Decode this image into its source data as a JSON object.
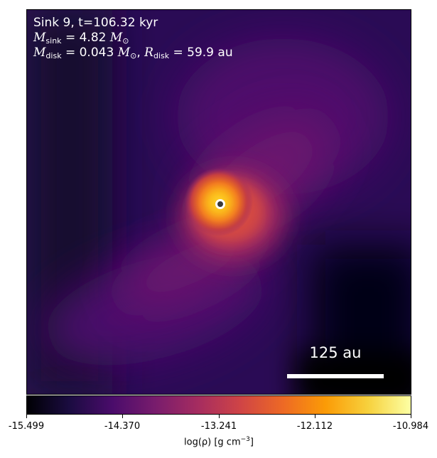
{
  "annotation": {
    "line1": "Sink 9, t=106.32 kyr",
    "m_sink_symbol": "M",
    "m_sink_sub": "sink",
    "m_sink_value": " = 4.82 ",
    "m_sink_unit": "M",
    "m_sink_unit_sub": "⊙",
    "m_disk_symbol": "M",
    "m_disk_sub": "disk",
    "m_disk_value": " = 0.043 ",
    "m_disk_unit": "M",
    "m_disk_unit_sub": "⊙",
    "r_disk_symbol": "R",
    "r_disk_sub": "disk",
    "r_disk_value": " = 59.9 au",
    "separator": ", "
  },
  "scalebar": {
    "label": "125 au"
  },
  "colorbar": {
    "ticks": [
      "-15.499",
      "-14.370",
      "-13.241",
      "-12.112",
      "-10.984"
    ],
    "label_prefix": "log(ρ) [g cm",
    "label_exp": "−3",
    "label_suffix": "]",
    "colormap": "inferno",
    "colors": [
      "#000004",
      "#1b0c41",
      "#4a0c6b",
      "#781c6d",
      "#a52c60",
      "#cf4446",
      "#ed6925",
      "#fb9b06",
      "#f7d13d",
      "#fcffa4"
    ]
  }
}
